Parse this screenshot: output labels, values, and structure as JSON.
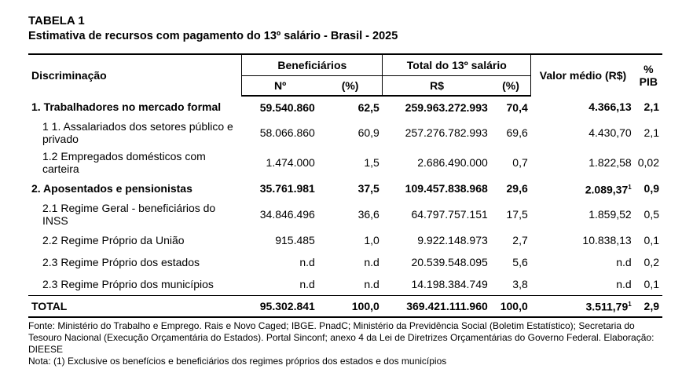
{
  "title": "TABELA 1",
  "subtitle": "Estimativa de recursos com pagamento do 13º salário - Brasil - 2025",
  "table": {
    "header": {
      "discriminacao": "Discriminação",
      "beneficiarios": "Beneficiários",
      "total": "Total do 13º salário",
      "valor": "Valor médio (R$)",
      "pib": "% PIB",
      "sub": [
        "Nº",
        "(%)",
        "R$",
        "(%)"
      ]
    },
    "rows": [
      {
        "bold": true,
        "cells": [
          "1. Trabalhadores no mercado formal",
          "59.540.860",
          "62,5",
          "259.963.272.993",
          "70,4",
          "4.366,13",
          "2,1"
        ]
      },
      {
        "bold": false,
        "cells": [
          "1 1. Assalariados dos setores público e privado",
          "58.066.860",
          "60,9",
          "257.276.782.993",
          "69,6",
          "4.430,70",
          "2,1"
        ]
      },
      {
        "bold": false,
        "cells": [
          "1.2 Empregados domésticos com carteira",
          "1.474.000",
          "1,5",
          "2.686.490.000",
          "0,7",
          "1.822,58",
          "0,02"
        ]
      },
      {
        "bold": true,
        "note": "1",
        "cells": [
          "2. Aposentados e pensionistas",
          "35.761.981",
          "37,5",
          "109.457.838.968",
          "29,6",
          "2.089,37",
          "0,9"
        ]
      },
      {
        "bold": false,
        "cells": [
          "2.1 Regime Geral - beneficiários do INSS",
          "34.846.496",
          "36,6",
          "64.797.757.151",
          "17,5",
          "1.859,52",
          "0,5"
        ]
      },
      {
        "bold": false,
        "cells": [
          "2.2 Regime Próprio da União",
          "915.485",
          "1,0",
          "9.922.148.973",
          "2,7",
          "10.838,13",
          "0,1"
        ]
      },
      {
        "bold": false,
        "cells": [
          "2.3 Regime Próprio dos estados",
          "n.d",
          "n.d",
          "20.539.548.095",
          "5,6",
          "n.d",
          "0,2"
        ]
      },
      {
        "bold": false,
        "cells": [
          "2.3 Regime Próprio dos municípios",
          "n.d",
          "n.d",
          "14.198.384.749",
          "3,8",
          "n.d",
          "0,1"
        ]
      },
      {
        "bold": true,
        "total": true,
        "note": "1",
        "cells": [
          "TOTAL",
          "95.302.841",
          "100,0",
          "369.421.111.960",
          "100,0",
          "3.511,79",
          "2,9"
        ]
      }
    ]
  },
  "footer": {
    "source": "Fonte: Ministério do Trabalho e Emprego. Rais e Novo Caged; IBGE. PnadC; Ministério da Previdência Social (Boletim Estatístico); Secretaria do Tesouro Nacional (Execução Orçamentária do Estados). Portal Sinconf; anexo 4 da Lei de Diretrizes Orçamentárias do Governo Federal. Elaboração: DIEESE",
    "note": "Nota: (1) Exclusive os benefícios e beneficiários dos regimes próprios dos estados e dos municípios"
  }
}
